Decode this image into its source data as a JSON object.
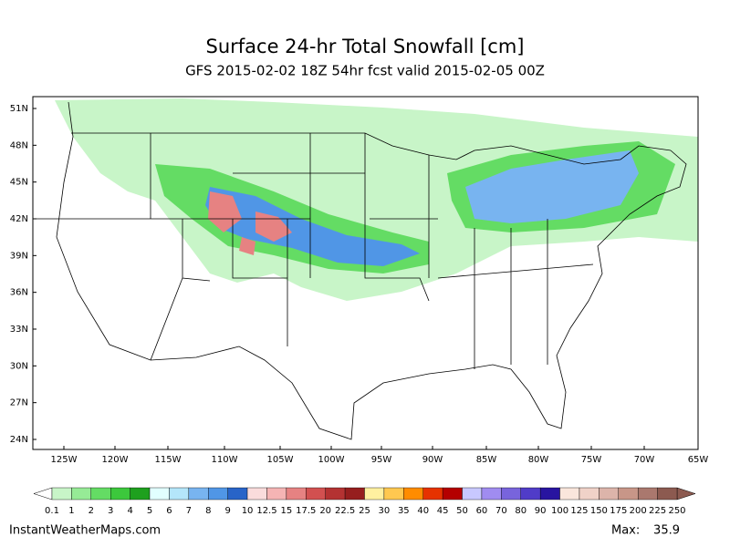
{
  "header": {
    "title": "Surface 24-hr Total Snowfall [cm]",
    "subtitle": "GFS 2015-02-02 18Z 54hr fcst valid 2015-02-05 00Z"
  },
  "map": {
    "lat_labels": [
      "51N",
      "48N",
      "45N",
      "42N",
      "39N",
      "36N",
      "33N",
      "30N",
      "27N",
      "24N"
    ],
    "lon_labels": [
      "125W",
      "120W",
      "115W",
      "110W",
      "105W",
      "100W",
      "95W",
      "90W",
      "85W",
      "80W",
      "75W",
      "70W",
      "65W"
    ]
  },
  "colorbar": {
    "labels": [
      0.1,
      1,
      2,
      3,
      4,
      5,
      6,
      7,
      8,
      9,
      10,
      12.5,
      15,
      17.5,
      20,
      22.5,
      25,
      30,
      35,
      40,
      45,
      50,
      60,
      70,
      80,
      90,
      100,
      125,
      150,
      175,
      200,
      225,
      250
    ],
    "colors": [
      "#c8f5c8",
      "#96eb96",
      "#64dc64",
      "#3cc83c",
      "#1ea01e",
      "#e1ffff",
      "#b4e6fa",
      "#78b4f0",
      "#5096e6",
      "#2864c8",
      "#fadcdc",
      "#f5b4b4",
      "#e68282",
      "#d25050",
      "#b43232",
      "#961e1e",
      "#fff0a0",
      "#ffc850",
      "#ff8c00",
      "#e63200",
      "#b40000",
      "#c8c8ff",
      "#a08cf0",
      "#7864dc",
      "#503cc8",
      "#2814a0",
      "#fae6dc",
      "#f0d2c8",
      "#dcb4aa",
      "#c89688",
      "#aa786e",
      "#8c5a50"
    ],
    "under_color": "#ffffff",
    "over_color": "#8c5a50"
  },
  "footer": {
    "site": "InstantWeatherMaps.com",
    "max_label": "Max:",
    "max_value": 35.9
  }
}
